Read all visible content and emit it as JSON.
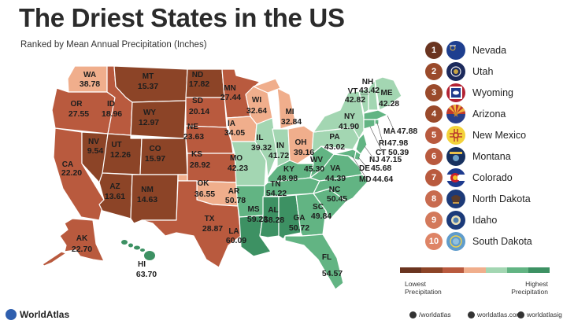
{
  "title": "The Driest States in the US",
  "subtitle": "Ranked by Mean Annual Precipitation (Inches)",
  "colors": {
    "rank1": "#6a3420",
    "rank2_4": "#9a4a2b",
    "driest_map": "#8c4427",
    "dry": "#b95a3e",
    "mid_dry": "#f0ae8c",
    "mid_wet": "#a3d6b2",
    "wet": "#62b483",
    "wettest": "#3d9163"
  },
  "states": [
    {
      "abbr": "WA",
      "value": "38.78"
    },
    {
      "abbr": "OR",
      "value": "27.55"
    },
    {
      "abbr": "CA",
      "value": "22.20"
    },
    {
      "abbr": "NV",
      "value": "9.54"
    },
    {
      "abbr": "ID",
      "value": "18.96"
    },
    {
      "abbr": "MT",
      "value": "15.37"
    },
    {
      "abbr": "WY",
      "value": "12.97"
    },
    {
      "abbr": "UT",
      "value": "12.26"
    },
    {
      "abbr": "CO",
      "value": "15.97"
    },
    {
      "abbr": "AZ",
      "value": "13.61"
    },
    {
      "abbr": "NM",
      "value": "14.63"
    },
    {
      "abbr": "ND",
      "value": "17.82"
    },
    {
      "abbr": "SD",
      "value": "20.14"
    },
    {
      "abbr": "NE",
      "value": "23.63"
    },
    {
      "abbr": "KS",
      "value": "28.92"
    },
    {
      "abbr": "OK",
      "value": "36.55"
    },
    {
      "abbr": "TX",
      "value": "28.87"
    },
    {
      "abbr": "MN",
      "value": "27.44"
    },
    {
      "abbr": "IA",
      "value": "34.05"
    },
    {
      "abbr": "MO",
      "value": "42.23"
    },
    {
      "abbr": "AR",
      "value": "50.78"
    },
    {
      "abbr": "LA",
      "value": "60.09"
    },
    {
      "abbr": "WI",
      "value": "32.64"
    },
    {
      "abbr": "IL",
      "value": "39.32"
    },
    {
      "abbr": "MI",
      "value": "32.84"
    },
    {
      "abbr": "IN",
      "value": "41.72"
    },
    {
      "abbr": "OH",
      "value": "39.16"
    },
    {
      "abbr": "KY",
      "value": "48.98"
    },
    {
      "abbr": "TN",
      "value": "54.22"
    },
    {
      "abbr": "MS",
      "value": "59.23"
    },
    {
      "abbr": "AL",
      "value": "58.28"
    },
    {
      "abbr": "GA",
      "value": "50.72"
    },
    {
      "abbr": "FL",
      "value": "54.57"
    },
    {
      "abbr": "SC",
      "value": "49.84"
    },
    {
      "abbr": "NC",
      "value": "50.45"
    },
    {
      "abbr": "VA",
      "value": "44.39"
    },
    {
      "abbr": "WV",
      "value": "45.30"
    },
    {
      "abbr": "PA",
      "value": "43.02"
    },
    {
      "abbr": "NY",
      "value": "41.90"
    },
    {
      "abbr": "VT",
      "value": "42.82"
    },
    {
      "abbr": "NH",
      "value": "43.42"
    },
    {
      "abbr": "ME",
      "value": "42.28"
    },
    {
      "abbr": "MA",
      "value": "47.88"
    },
    {
      "abbr": "RI",
      "value": "47.98"
    },
    {
      "abbr": "CT",
      "value": "50.39"
    },
    {
      "abbr": "NJ",
      "value": "47.15"
    },
    {
      "abbr": "DE",
      "value": "45.68"
    },
    {
      "abbr": "MD",
      "value": "44.64"
    },
    {
      "abbr": "AK",
      "value": "22.70"
    },
    {
      "abbr": "HI",
      "value": "63.70"
    }
  ],
  "ranking": [
    {
      "rank": "1",
      "name": "Nevada",
      "flag": "nevada-flag-icon"
    },
    {
      "rank": "2",
      "name": "Utah",
      "flag": "utah-flag-icon"
    },
    {
      "rank": "3",
      "name": "Wyoming",
      "flag": "wyoming-flag-icon"
    },
    {
      "rank": "4",
      "name": "Arizona",
      "flag": "arizona-flag-icon"
    },
    {
      "rank": "5",
      "name": "New Mexico",
      "flag": "new-mexico-flag-icon"
    },
    {
      "rank": "6",
      "name": "Montana",
      "flag": "montana-flag-icon"
    },
    {
      "rank": "7",
      "name": "Colorado",
      "flag": "colorado-flag-icon"
    },
    {
      "rank": "8",
      "name": "North Dakota",
      "flag": "north-dakota-flag-icon"
    },
    {
      "rank": "9",
      "name": "Idaho",
      "flag": "idaho-flag-icon"
    },
    {
      "rank": "10",
      "name": "South Dakota",
      "flag": "south-dakota-flag-icon"
    }
  ],
  "legend": {
    "low_line1": "Lowest",
    "low_line2": "Precipitation",
    "high_line1": "Highest",
    "high_line2": "Precipitation"
  },
  "footer": {
    "brand": "WorldAtlas",
    "facebook": "/worldatlas",
    "web": "worldatlas.com",
    "instagram": "worldatlasig"
  }
}
